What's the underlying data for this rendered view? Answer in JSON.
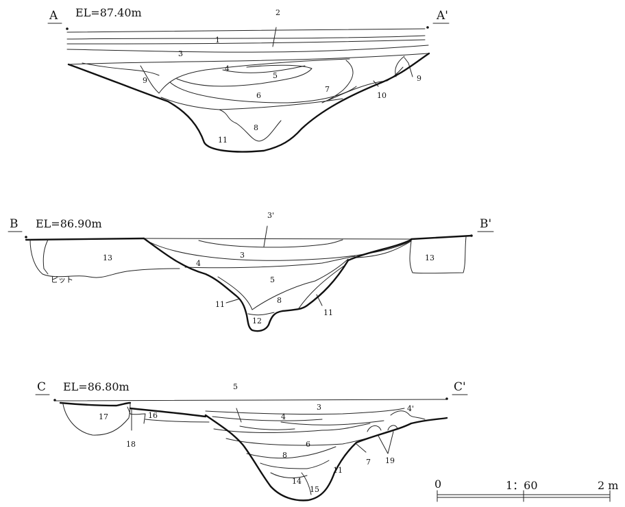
{
  "sections": [
    {
      "id": "A",
      "start_label": "A",
      "end_label": "A'",
      "elevation": "EL=87.40m",
      "layer_labels": [
        "1",
        "2",
        "3",
        "4",
        "5",
        "6",
        "7",
        "8",
        "9",
        "9",
        "10",
        "11"
      ]
    },
    {
      "id": "B",
      "start_label": "B",
      "end_label": "B'",
      "elevation": "EL=86.90m",
      "layer_labels": [
        "3'",
        "3",
        "4",
        "5",
        "8",
        "11",
        "11",
        "12",
        "13",
        "13"
      ],
      "pit_label": "ピット"
    },
    {
      "id": "C",
      "start_label": "C",
      "end_label": "C'",
      "elevation": "EL=86.80m",
      "layer_labels": [
        "3",
        "4",
        "4'",
        "5",
        "6",
        "7",
        "8",
        "11",
        "14",
        "15",
        "16",
        "17",
        "18",
        "19"
      ]
    }
  ],
  "scale_bar": {
    "zero": "0",
    "ratio": "1：60",
    "end": "2 m"
  }
}
